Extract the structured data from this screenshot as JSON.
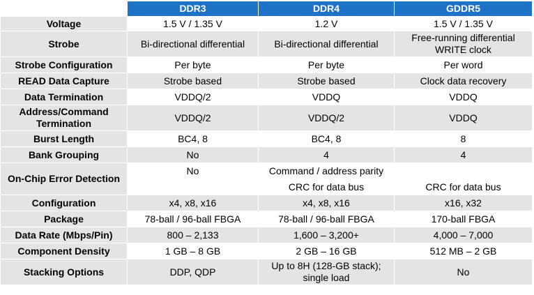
{
  "table": {
    "columns": [
      "",
      "DDR3",
      "DDR4",
      "GDDR5"
    ],
    "rows": [
      {
        "label": "Voltage",
        "ddr3": "1.5 V / 1.35 V",
        "ddr4": "1.2 V",
        "gddr5": "1.5 V / 1.35 V"
      },
      {
        "label": "Strobe",
        "ddr3": "Bi-directional differential",
        "ddr4": "Bi-directional differential",
        "gddr5": "Free-running differential\nWRITE clock"
      },
      {
        "label": "Strobe Configuration",
        "ddr3": "Per byte",
        "ddr4": "Per byte",
        "gddr5": "Per word"
      },
      {
        "label": "READ Data Capture",
        "ddr3": "Strobe based",
        "ddr4": "Strobe based",
        "gddr5": "Clock data recovery"
      },
      {
        "label": "Data Termination",
        "ddr3": "VDDQ/2",
        "ddr4": "VDDQ",
        "gddr5": "VDDQ"
      },
      {
        "label": "Address/Command\nTermination",
        "ddr3": "VDDQ/2",
        "ddr4": "VDDQ/2",
        "gddr5": "VDDQ"
      },
      {
        "label": "Burst Length",
        "ddr3": "BC4, 8",
        "ddr4": "BC4, 8",
        "gddr5": "8"
      },
      {
        "label": "Bank Grouping",
        "ddr3": "No",
        "ddr4": "4",
        "gddr5": "4"
      },
      {
        "label": "On-Chip Error Detection",
        "ddr3": "No",
        "ddr4_a": "Command / address parity",
        "ddr4_b": "CRC for data bus",
        "gddr5": "CRC for data bus"
      },
      {
        "label": "Configuration",
        "ddr3": "x4, x8, x16",
        "ddr4": "x4, x8, x16",
        "gddr5": "x16, x32"
      },
      {
        "label": "Package",
        "ddr3": "78-ball / 96-ball FBGA",
        "ddr4": "78-ball / 96-ball FBGA",
        "gddr5": "170-ball FBGA"
      },
      {
        "label": "Data Rate (Mbps/Pin)",
        "ddr3": "800 – 2,133",
        "ddr4": "1,600 – 3,200+",
        "gddr5": "4,000 – 7,000"
      },
      {
        "label": "Component Density",
        "ddr3": "1 GB – 8 GB",
        "ddr4": "2 GB – 16 GB",
        "gddr5": "512 MB – 2 GB"
      },
      {
        "label": "Stacking Options",
        "ddr3": "DDP, QDP",
        "ddr4": "Up to 8H (128-GB stack);\nsingle load",
        "gddr5": "No"
      }
    ]
  }
}
